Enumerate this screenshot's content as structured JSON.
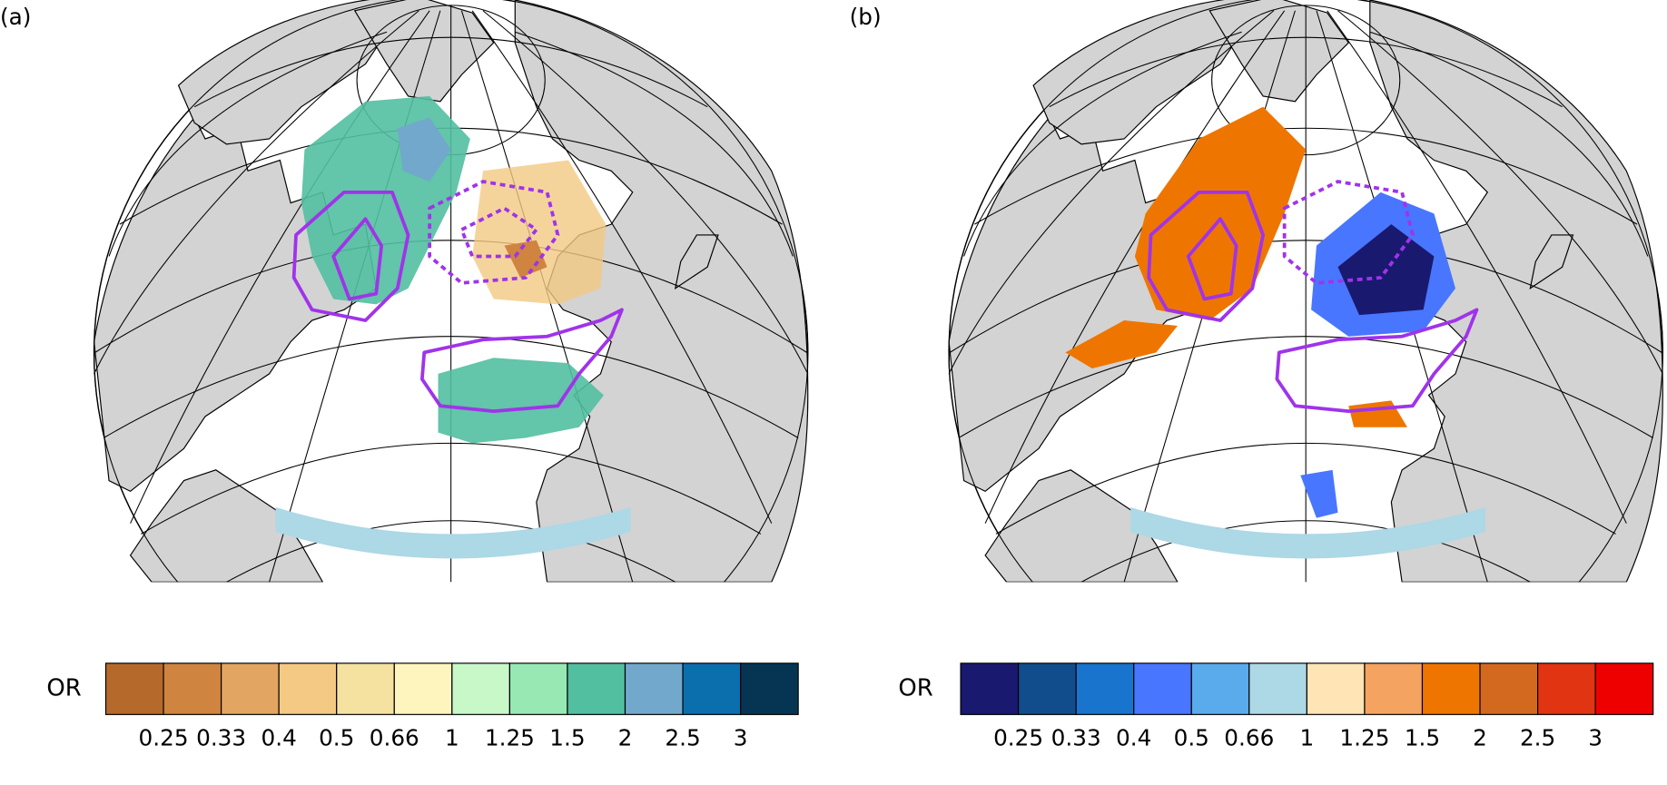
{
  "panels": [
    {
      "label": "(a)",
      "colorbar": {
        "label": "OR",
        "ticks": [
          "0.25",
          "0.33",
          "0.4",
          "0.5",
          "0.66",
          "1",
          "1.25",
          "1.5",
          "2",
          "2.5",
          "3"
        ],
        "colors": [
          "#b5692a",
          "#cf843f",
          "#e2a562",
          "#f3c983",
          "#f5e2a0",
          "#fdf5bd",
          "#c8f7c8",
          "#98e8b4",
          "#52bfa0",
          "#72a8cc",
          "#0b6fae",
          "#063554"
        ]
      }
    },
    {
      "label": "(b)",
      "colorbar": {
        "label": "OR",
        "ticks": [
          "0.25",
          "0.33",
          "0.4",
          "0.5",
          "0.66",
          "1",
          "1.25",
          "1.5",
          "2",
          "2.5",
          "3"
        ],
        "colors": [
          "#191970",
          "#114d8c",
          "#1874cd",
          "#4876ff",
          "#5aabec",
          "#add8e6",
          "#ffe4b5",
          "#f4a460",
          "#ee7600",
          "#d2691e",
          "#e03412",
          "#ee0000"
        ]
      }
    }
  ]
}
